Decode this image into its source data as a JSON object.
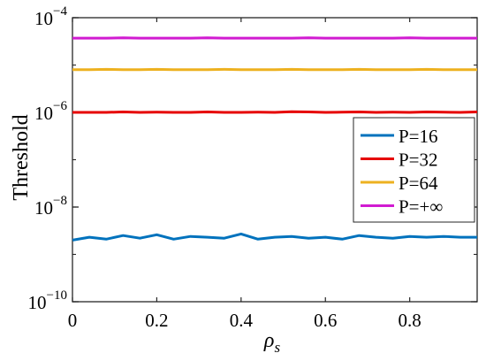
{
  "chart_data": {
    "type": "line",
    "xlabel": "ρs",
    "xlabel_main": "ρ",
    "xlabel_sub": "s",
    "ylabel": "Threshold",
    "x_scale": "linear",
    "y_scale": "log",
    "xlim": [
      0,
      0.96
    ],
    "ylim": [
      1e-10,
      0.0001
    ],
    "grid": false,
    "legend_position": "inside-right",
    "x_ticks": [
      0,
      0.2,
      0.4,
      0.6,
      0.8
    ],
    "x_tick_labels": [
      "0",
      "0.2",
      "0.4",
      "0.6",
      "0.8"
    ],
    "y_ticks": [
      1e-10,
      1e-08,
      1e-06,
      0.0001
    ],
    "y_tick_labels": [
      {
        "base": "10",
        "exp": "−10"
      },
      {
        "base": "10",
        "exp": "−8"
      },
      {
        "base": "10",
        "exp": "−6"
      },
      {
        "base": "10",
        "exp": "−4"
      }
    ],
    "x": [
      0,
      0.04,
      0.08,
      0.12,
      0.16,
      0.2,
      0.24,
      0.28,
      0.32,
      0.36,
      0.4,
      0.44,
      0.48,
      0.52,
      0.56,
      0.6,
      0.64,
      0.68,
      0.72,
      0.76,
      0.8,
      0.84,
      0.88,
      0.92,
      0.96
    ],
    "series": [
      {
        "name": "P=16",
        "color": "#0072BD",
        "values": [
          2e-09,
          2.3e-09,
          2.1e-09,
          2.5e-09,
          2.2e-09,
          2.6e-09,
          2.1e-09,
          2.4e-09,
          2.3e-09,
          2.2e-09,
          2.7e-09,
          2.1e-09,
          2.3e-09,
          2.4e-09,
          2.2e-09,
          2.3e-09,
          2.1e-09,
          2.5e-09,
          2.3e-09,
          2.2e-09,
          2.4e-09,
          2.3e-09,
          2.4e-09,
          2.3e-09,
          2.3e-09
        ]
      },
      {
        "name": "P=32",
        "color": "#E60000",
        "values": [
          1e-06,
          1e-06,
          1e-06,
          1.02e-06,
          1e-06,
          1.01e-06,
          1e-06,
          1e-06,
          1.02e-06,
          1e-06,
          1e-06,
          1.01e-06,
          1e-06,
          1.03e-06,
          1.02e-06,
          1e-06,
          1.01e-06,
          1.02e-06,
          1e-06,
          1.01e-06,
          1e-06,
          1.02e-06,
          1.01e-06,
          1e-06,
          1.02e-06
        ]
      },
      {
        "name": "P=64",
        "color": "#EDB120",
        "values": [
          8e-06,
          8e-06,
          8.1e-06,
          8e-06,
          8e-06,
          8.1e-06,
          8e-06,
          8e-06,
          8e-06,
          8.1e-06,
          8e-06,
          8e-06,
          8e-06,
          8.1e-06,
          8e-06,
          8e-06,
          8e-06,
          8.1e-06,
          8e-06,
          8e-06,
          8e-06,
          8.1e-06,
          8e-06,
          8e-06,
          8e-06
        ]
      },
      {
        "name": "P=+∞",
        "color": "#D11BD1",
        "values": [
          3.7e-05,
          3.7e-05,
          3.7e-05,
          3.75e-05,
          3.7e-05,
          3.7e-05,
          3.7e-05,
          3.7e-05,
          3.75e-05,
          3.7e-05,
          3.7e-05,
          3.7e-05,
          3.7e-05,
          3.7e-05,
          3.75e-05,
          3.7e-05,
          3.7e-05,
          3.7e-05,
          3.7e-05,
          3.7e-05,
          3.75e-05,
          3.7e-05,
          3.7e-05,
          3.7e-05,
          3.7e-05
        ]
      }
    ]
  }
}
